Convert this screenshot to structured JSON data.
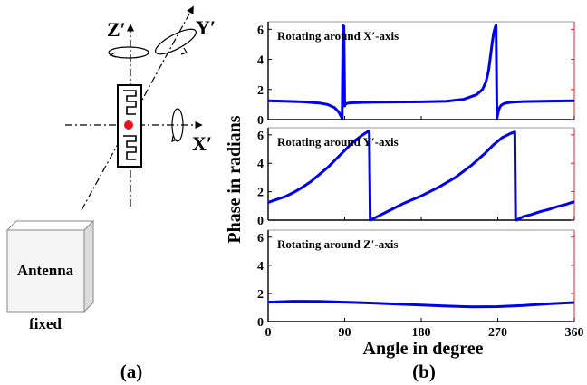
{
  "panel_a": {
    "caption": "(a)",
    "axes": {
      "z": "Z′",
      "y": "Y′",
      "x": "X′"
    },
    "antenna_label": "Antenna",
    "fixed_label": "fixed"
  },
  "panel_b": {
    "caption": "(b)",
    "ylabel": "Phase in radians",
    "xlabel": "Angle in degree"
  },
  "chart_data": [
    {
      "type": "line",
      "title": "Rotating around X′-axis",
      "xlim": [
        0,
        360
      ],
      "ylim": [
        0,
        6.5
      ],
      "yticks": [
        0,
        2,
        4,
        6
      ],
      "color": "#0000ee",
      "x": [
        0,
        20,
        40,
        60,
        70,
        78,
        83,
        86,
        87,
        88,
        89,
        90,
        91,
        95,
        100,
        120,
        150,
        180,
        210,
        230,
        245,
        252,
        256,
        259,
        261,
        263,
        265,
        267,
        268,
        269,
        270,
        271,
        272,
        274,
        278,
        285,
        300,
        330,
        360
      ],
      "y": [
        1.25,
        1.22,
        1.18,
        1.1,
        1.0,
        0.8,
        0.5,
        0.2,
        0.05,
        6.25,
        6.2,
        0.9,
        1.05,
        1.1,
        1.12,
        1.15,
        1.17,
        1.18,
        1.22,
        1.35,
        1.65,
        2.0,
        2.5,
        3.2,
        4.0,
        4.9,
        5.7,
        6.15,
        6.28,
        0.1,
        0.35,
        0.6,
        0.78,
        0.95,
        1.08,
        1.15,
        1.2,
        1.23,
        1.25
      ]
    },
    {
      "type": "line",
      "title": "Rotating around Y′-axis",
      "xlim": [
        0,
        360
      ],
      "ylim": [
        0,
        6.5
      ],
      "yticks": [
        0,
        2,
        4,
        6
      ],
      "color": "#0000ee",
      "x": [
        0,
        10,
        20,
        30,
        40,
        50,
        60,
        70,
        80,
        90,
        100,
        110,
        115,
        118,
        119,
        120,
        122,
        130,
        140,
        160,
        180,
        200,
        220,
        240,
        255,
        265,
        275,
        285,
        290,
        291,
        292,
        295,
        300,
        310,
        320,
        330,
        340,
        350,
        360
      ],
      "y": [
        1.25,
        1.45,
        1.65,
        1.95,
        2.3,
        2.7,
        3.2,
        3.7,
        4.3,
        4.9,
        5.5,
        5.95,
        6.15,
        6.25,
        6.1,
        0.0,
        0.05,
        0.3,
        0.6,
        1.2,
        1.7,
        2.3,
        3.0,
        3.9,
        4.7,
        5.3,
        5.8,
        6.1,
        6.2,
        0.05,
        0.0,
        0.1,
        0.25,
        0.4,
        0.6,
        0.75,
        0.95,
        1.1,
        1.3
      ]
    },
    {
      "type": "line",
      "title": "Rotating around Z′-axis",
      "xlim": [
        0,
        360
      ],
      "ylim": [
        0,
        6.5
      ],
      "yticks": [
        0,
        2,
        4,
        6
      ],
      "xticks": [
        0,
        90,
        180,
        270,
        360
      ],
      "color": "#0000ee",
      "x": [
        0,
        30,
        60,
        90,
        120,
        150,
        180,
        210,
        240,
        270,
        300,
        330,
        360
      ],
      "y": [
        1.38,
        1.44,
        1.43,
        1.38,
        1.32,
        1.25,
        1.17,
        1.1,
        1.05,
        1.06,
        1.14,
        1.26,
        1.35
      ]
    }
  ]
}
